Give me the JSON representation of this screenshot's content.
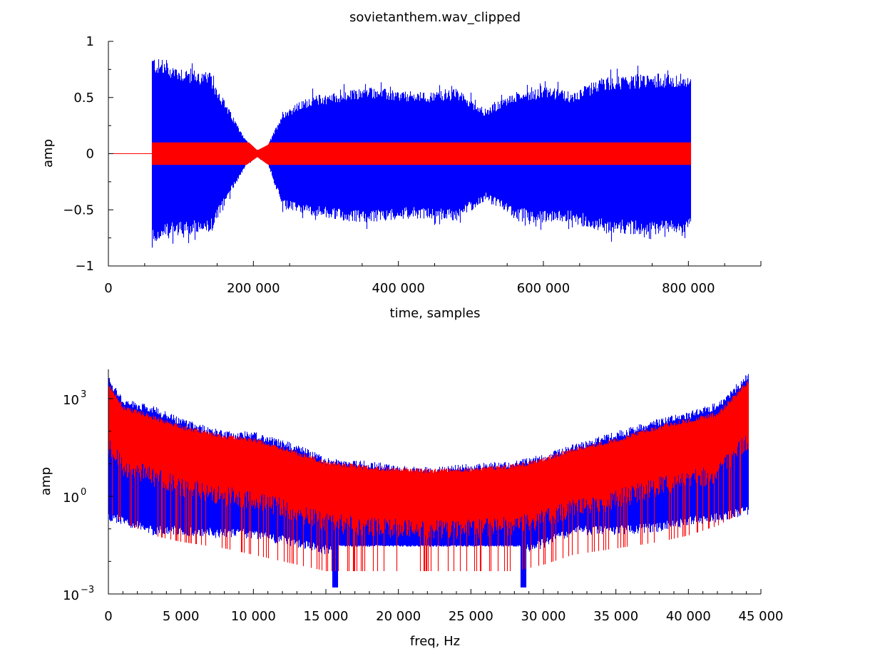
{
  "chart_data": [
    {
      "type": "line",
      "title": "sovietanthem.wav_clipped",
      "xlabel": "time, samples",
      "ylabel": "amp",
      "xlim": [
        0,
        900000
      ],
      "ylim": [
        -1,
        1
      ],
      "xticks": [
        {
          "value": 0,
          "label": "0"
        },
        {
          "value": 200000,
          "label": "200 000"
        },
        {
          "value": 400000,
          "label": "400 000"
        },
        {
          "value": 600000,
          "label": "600 000"
        },
        {
          "value": 800000,
          "label": "800 000"
        }
      ],
      "yticks": [
        {
          "value": 1,
          "label": "1"
        },
        {
          "value": 0.5,
          "label": "0.5"
        },
        {
          "value": 0,
          "label": "0"
        },
        {
          "value": -0.5,
          "label": "−0.5"
        },
        {
          "value": -1,
          "label": "−1"
        }
      ],
      "grid": false,
      "series": [
        {
          "color": "#0000ff",
          "signal_start": 60000,
          "signal_end": 803000,
          "envelope_x": [
            60000,
            70000,
            100000,
            140000,
            170000,
            190000,
            205000,
            220000,
            240000,
            280000,
            320000,
            360000,
            400000,
            440000,
            480000,
            520000,
            560000,
            600000,
            640000,
            680000,
            720000,
            760000,
            800000
          ],
          "envelope_upper": [
            0.88,
            0.84,
            0.78,
            0.72,
            0.35,
            0.12,
            0.03,
            0.08,
            0.38,
            0.52,
            0.55,
            0.6,
            0.56,
            0.55,
            0.58,
            0.4,
            0.55,
            0.6,
            0.55,
            0.68,
            0.7,
            0.72,
            0.68
          ],
          "envelope_lower": [
            -0.8,
            -0.78,
            -0.72,
            -0.72,
            -0.33,
            -0.1,
            -0.03,
            -0.1,
            -0.5,
            -0.55,
            -0.6,
            -0.62,
            -0.58,
            -0.58,
            -0.6,
            -0.42,
            -0.58,
            -0.62,
            -0.6,
            -0.7,
            -0.72,
            -0.72,
            -0.7
          ]
        },
        {
          "color": "#ff0000",
          "clip_level": 0.1,
          "signal_start": 60000,
          "signal_end": 803000
        }
      ]
    },
    {
      "type": "line",
      "title": "",
      "xlabel": "freq, Hz",
      "ylabel": "amp",
      "xlim": [
        0,
        45000
      ],
      "ylim_log10": [
        -3,
        3.9
      ],
      "yscale": "log",
      "xticks": [
        {
          "value": 0,
          "label": "0"
        },
        {
          "value": 5000,
          "label": "5 000"
        },
        {
          "value": 10000,
          "label": "10 000"
        },
        {
          "value": 15000,
          "label": "15 000"
        },
        {
          "value": 20000,
          "label": "20 000"
        },
        {
          "value": 25000,
          "label": "25 000"
        },
        {
          "value": 30000,
          "label": "30 000"
        },
        {
          "value": 35000,
          "label": "35 000"
        },
        {
          "value": 40000,
          "label": "40 000"
        },
        {
          "value": 45000,
          "label": "45 000"
        }
      ],
      "yticks": [
        {
          "value": 1000,
          "base": "10",
          "exp": "3"
        },
        {
          "value": 1,
          "base": "10",
          "exp": "0"
        },
        {
          "value": 0.001,
          "base": "10",
          "exp": "−3"
        }
      ],
      "grid": false,
      "series": [
        {
          "color": "#0000ff",
          "freq_end": 44100,
          "floor_band": {
            "x": [
              15600,
              28600
            ],
            "log10_amp": [
              -1.5,
              -1.1
            ]
          },
          "envelope_x": [
            0,
            1000,
            3000,
            5000,
            8000,
            10000,
            13000,
            15000,
            18000,
            20000,
            22000,
            25000,
            28000,
            30000,
            32000,
            35000,
            38000,
            40000,
            42000,
            44100
          ],
          "envelope_upper_log10": [
            3.7,
            3.0,
            2.8,
            2.4,
            2.0,
            2.0,
            1.6,
            1.2,
            1.1,
            0.95,
            0.9,
            1.0,
            1.1,
            1.3,
            1.6,
            2.0,
            2.4,
            2.6,
            2.9,
            3.8
          ],
          "envelope_lower_log10": [
            -0.5,
            -0.6,
            -0.9,
            -0.9,
            -1.0,
            -1.0,
            -1.3,
            -1.5,
            -1.5,
            -1.5,
            -1.5,
            -1.5,
            -1.5,
            -1.3,
            -0.9,
            -0.9,
            -0.8,
            -0.6,
            -0.5,
            -0.3
          ]
        },
        {
          "color": "#ff0000",
          "freq_end": 44100,
          "envelope_x": [
            0,
            1000,
            3000,
            5000,
            8000,
            10000,
            13000,
            15000,
            18000,
            20000,
            22000,
            25000,
            28000,
            30000,
            32000,
            35000,
            38000,
            40000,
            42000,
            44100
          ],
          "envelope_upper_log10": [
            3.5,
            2.8,
            2.5,
            2.2,
            1.9,
            1.8,
            1.4,
            1.1,
            0.95,
            0.9,
            0.85,
            0.9,
            1.0,
            1.2,
            1.5,
            1.8,
            2.2,
            2.4,
            2.6,
            3.6
          ],
          "envelope_lower_log10": [
            -0.5,
            -0.8,
            -1.2,
            -1.4,
            -1.6,
            -1.8,
            -2.1,
            -2.3,
            -2.3,
            -2.3,
            -2.3,
            -2.3,
            -2.3,
            -2.1,
            -1.8,
            -1.6,
            -1.4,
            -1.2,
            -0.9,
            -0.4
          ]
        }
      ]
    }
  ]
}
